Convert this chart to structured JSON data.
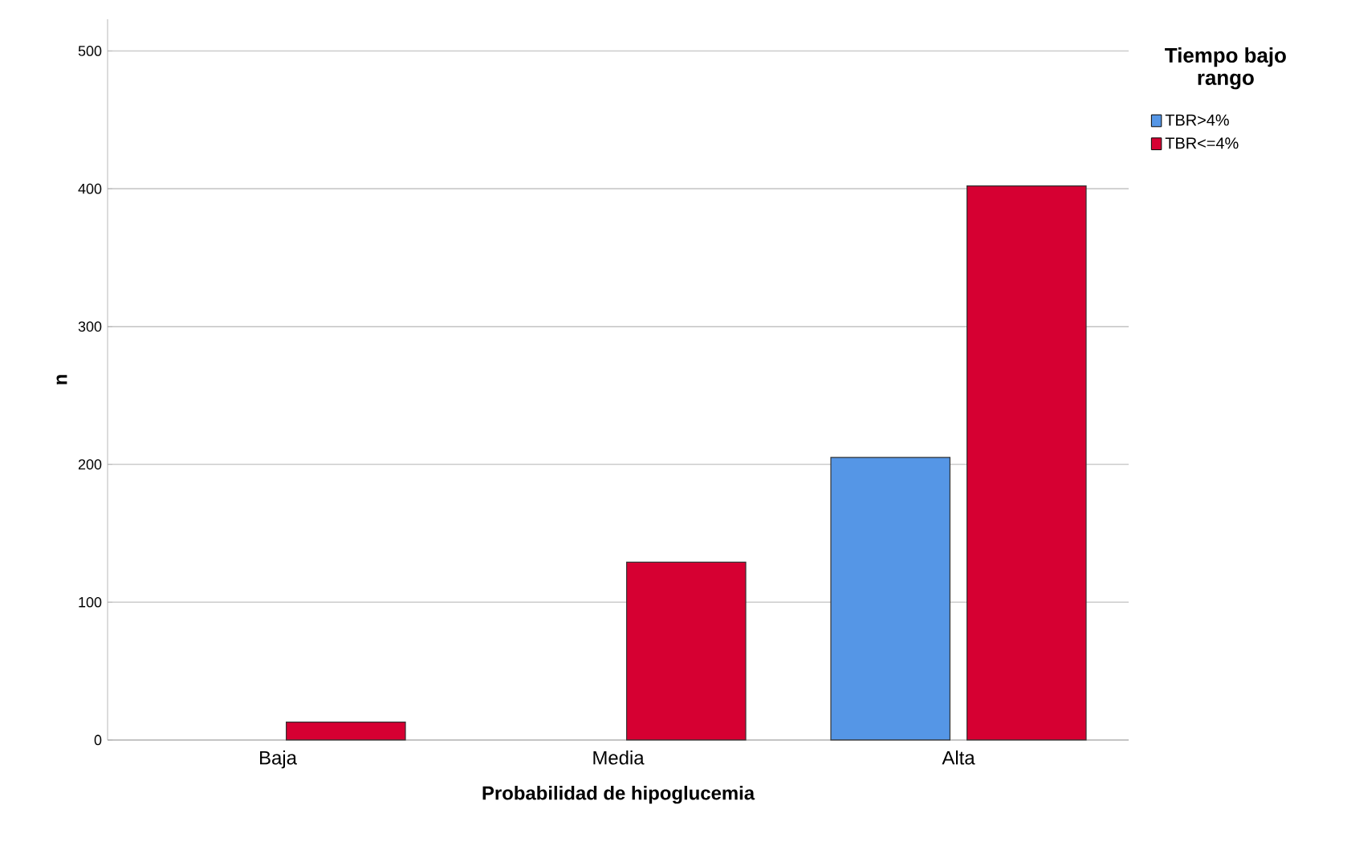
{
  "chart_data": {
    "type": "bar",
    "xlabel": "Probabilidad de hipoglucemia",
    "ylabel": "n",
    "legend_title": "Tiempo bajo rango",
    "categories": [
      "Baja",
      "Media",
      "Alta"
    ],
    "series": [
      {
        "name": "TBR>4%",
        "color": "#5596e6",
        "values": [
          null,
          null,
          205
        ]
      },
      {
        "name": "TBR<=4%",
        "color": "#d60032",
        "values": [
          13,
          129,
          402
        ]
      }
    ],
    "ylim": [
      0,
      523
    ],
    "yticks": [
      0,
      100,
      200,
      300,
      400,
      500
    ],
    "grid": "y",
    "legend": "top right"
  }
}
